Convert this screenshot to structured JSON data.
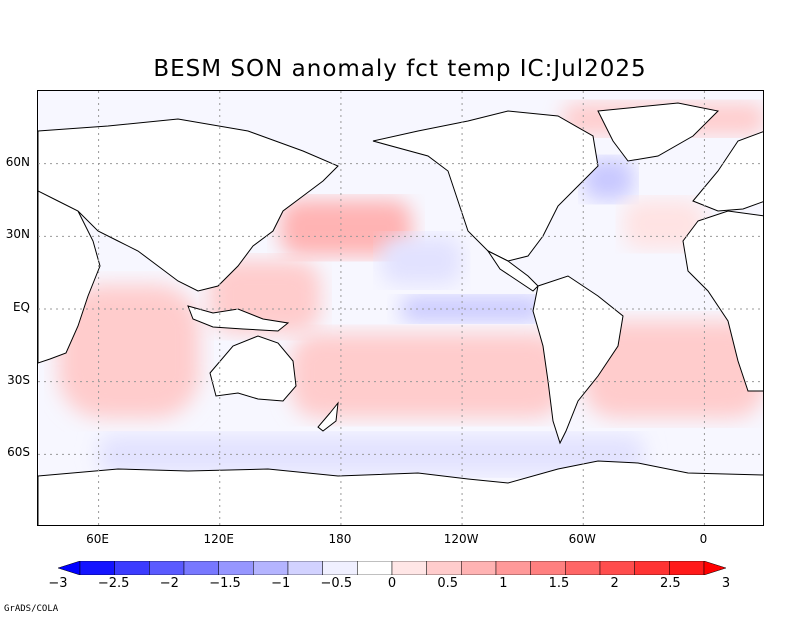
{
  "title": "BESM   SON anomaly fct temp IC:Jul2025",
  "credit": "GrADS/COLA",
  "map": {
    "projection": "cylindrical equidistant",
    "lon_range": [
      30,
      390
    ],
    "lat_range": [
      -90,
      90
    ],
    "lat_ticks": [
      {
        "value": 60,
        "label": "60N"
      },
      {
        "value": 30,
        "label": "30N"
      },
      {
        "value": 0,
        "label": "EQ"
      },
      {
        "value": -30,
        "label": "30S"
      },
      {
        "value": -60,
        "label": "60S"
      }
    ],
    "lon_ticks": [
      {
        "value": 60,
        "label": "60E"
      },
      {
        "value": 120,
        "label": "120E"
      },
      {
        "value": 180,
        "label": "180"
      },
      {
        "value": 240,
        "label": "120W"
      },
      {
        "value": 300,
        "label": "60W"
      },
      {
        "value": 360,
        "label": "0"
      }
    ],
    "anomaly_regions": [
      {
        "name": "indian-ocean-warm",
        "lon": [
          40,
          110
        ],
        "lat": [
          -45,
          10
        ],
        "value": 1.0
      },
      {
        "name": "south-pacific-warm",
        "lon": [
          155,
          290
        ],
        "lat": [
          -45,
          -10
        ],
        "value": 1.0
      },
      {
        "name": "south-atlantic-warm",
        "lon": [
          300,
          390
        ],
        "lat": [
          -45,
          -5
        ],
        "value": 1.0
      },
      {
        "name": "north-pacific-warm",
        "lon": [
          150,
          215
        ],
        "lat": [
          22,
          45
        ],
        "value": 1.5
      },
      {
        "name": "western-pacific-warm",
        "lon": [
          115,
          170
        ],
        "lat": [
          -10,
          20
        ],
        "value": 1.0
      },
      {
        "name": "equatorial-pacific-cool",
        "lon": [
          210,
          280
        ],
        "lat": [
          -5,
          5
        ],
        "value": -0.5
      },
      {
        "name": "northeast-pacific-cool",
        "lon": [
          200,
          240
        ],
        "lat": [
          10,
          30
        ],
        "value": -0.3
      },
      {
        "name": "southern-ocean-cool",
        "lon": [
          60,
          330
        ],
        "lat": [
          -68,
          -52
        ],
        "value": -0.3
      },
      {
        "name": "labrador-cool",
        "lon": [
          300,
          325
        ],
        "lat": [
          45,
          62
        ],
        "value": -0.5
      },
      {
        "name": "arctic-warm",
        "lon": [
          290,
          390
        ],
        "lat": [
          72,
          85
        ],
        "value": 1.0
      },
      {
        "name": "north-atlantic-warm",
        "lon": [
          320,
          360
        ],
        "lat": [
          25,
          45
        ],
        "value": 0.7
      }
    ]
  },
  "colorbar": {
    "labels": [
      "−3",
      "−2.5",
      "−2",
      "−1.5",
      "−1",
      "−0.5",
      "0",
      "0.5",
      "1",
      "1.5",
      "2",
      "2.5",
      "3"
    ],
    "colors": [
      "#1414ff",
      "#3c3cff",
      "#5a5aff",
      "#7878ff",
      "#9696ff",
      "#b4b4ff",
      "#d2d2ff",
      "#f0f0ff",
      "#ffffff",
      "#ffe6e6",
      "#ffcccc",
      "#ffb3b3",
      "#ff9999",
      "#ff8080",
      "#ff6666",
      "#ff4d4d",
      "#ff3333",
      "#ff1a1a"
    ],
    "left_arrow_color": "#0000ff",
    "right_arrow_color": "#ff0000"
  }
}
